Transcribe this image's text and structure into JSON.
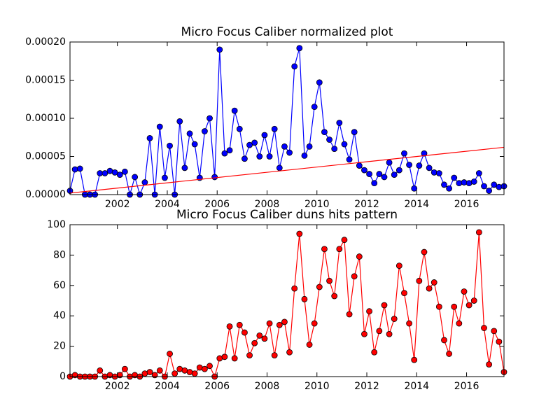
{
  "chart_data": [
    {
      "type": "line",
      "title": "Micro Focus Caliber normalized plot",
      "x": [
        2000.1,
        2000.3,
        2000.5,
        2000.7,
        2000.9,
        2001.1,
        2001.3,
        2001.5,
        2001.7,
        2001.9,
        2002.1,
        2002.3,
        2002.5,
        2002.7,
        2002.9,
        2003.1,
        2003.3,
        2003.5,
        2003.7,
        2003.9,
        2004.1,
        2004.3,
        2004.5,
        2004.7,
        2004.9,
        2005.1,
        2005.3,
        2005.5,
        2005.7,
        2005.9,
        2006.1,
        2006.3,
        2006.5,
        2006.7,
        2006.9,
        2007.1,
        2007.3,
        2007.5,
        2007.7,
        2007.9,
        2008.1,
        2008.3,
        2008.5,
        2008.7,
        2008.9,
        2009.1,
        2009.3,
        2009.5,
        2009.7,
        2009.9,
        2010.1,
        2010.3,
        2010.5,
        2010.7,
        2010.9,
        2011.1,
        2011.3,
        2011.5,
        2011.7,
        2011.9,
        2012.1,
        2012.3,
        2012.5,
        2012.7,
        2012.9,
        2013.1,
        2013.3,
        2013.5,
        2013.7,
        2013.9,
        2014.1,
        2014.3,
        2014.5,
        2014.7,
        2014.9,
        2015.1,
        2015.3,
        2015.5,
        2015.7,
        2015.9,
        2016.1,
        2016.3,
        2016.5,
        2016.7,
        2016.9,
        2017.1,
        2017.3,
        2017.5
      ],
      "series": [
        {
          "color": "#0000ff",
          "values": [
            5e-06,
            3.3e-05,
            3.4e-05,
            0,
            0,
            0,
            2.8e-05,
            2.8e-05,
            3.1e-05,
            2.9e-05,
            2.6e-05,
            3e-05,
            0,
            2.3e-05,
            0,
            1.6e-05,
            7.4e-05,
            0,
            8.9e-05,
            2.2e-05,
            6.4e-05,
            0,
            9.6e-05,
            3.5e-05,
            8e-05,
            6.6e-05,
            2.2e-05,
            8.3e-05,
            0.0001,
            2.3e-05,
            0.00019,
            5.4e-05,
            5.8e-05,
            0.00011,
            8.6e-05,
            4.7e-05,
            6.5e-05,
            6.8e-05,
            5e-05,
            7.8e-05,
            5e-05,
            8.6e-05,
            3.5e-05,
            6.3e-05,
            5.5e-05,
            0.000168,
            0.000192,
            5.1e-05,
            6.3e-05,
            0.000115,
            0.000147,
            8.2e-05,
            7.2e-05,
            6e-05,
            9.4e-05,
            6.6e-05,
            4.6e-05,
            8.2e-05,
            3.8e-05,
            3.2e-05,
            2.7e-05,
            1.5e-05,
            2.7e-05,
            2.3e-05,
            4.2e-05,
            2.6e-05,
            3.2e-05,
            5.4e-05,
            3.9e-05,
            8e-06,
            3.8e-05,
            5.4e-05,
            3.5e-05,
            2.9e-05,
            2.8e-05,
            1.3e-05,
            8e-06,
            2.2e-05,
            1.5e-05,
            1.6e-05,
            1.5e-05,
            1.7e-05,
            2.8e-05,
            1.1e-05,
            5e-06,
            1.3e-05,
            1e-05,
            1.1e-05
          ]
        }
      ],
      "trend": {
        "x": [
          2000.1,
          2017.5
        ],
        "values": [
          2e-06,
          6.2e-05
        ],
        "color": "#ff0000"
      },
      "xlim": [
        2000.1,
        2017.5
      ],
      "xticks": [
        2002,
        2004,
        2006,
        2008,
        2010,
        2012,
        2014,
        2016
      ],
      "ylim": [
        0,
        0.0002
      ],
      "yticks": [
        {
          "value": 0,
          "label": "0.00000"
        },
        {
          "value": 5e-05,
          "label": "0.00005"
        },
        {
          "value": 0.0001,
          "label": "0.00010"
        },
        {
          "value": 0.00015,
          "label": "0.00015"
        },
        {
          "value": 0.0002,
          "label": "0.00020"
        }
      ]
    },
    {
      "type": "line",
      "title": "Micro Focus Caliber duns hits pattern",
      "x": [
        2000.1,
        2000.3,
        2000.5,
        2000.7,
        2000.9,
        2001.1,
        2001.3,
        2001.5,
        2001.7,
        2001.9,
        2002.1,
        2002.3,
        2002.5,
        2002.7,
        2002.9,
        2003.1,
        2003.3,
        2003.5,
        2003.7,
        2003.9,
        2004.1,
        2004.3,
        2004.5,
        2004.7,
        2004.9,
        2005.1,
        2005.3,
        2005.5,
        2005.7,
        2005.9,
        2006.1,
        2006.3,
        2006.5,
        2006.7,
        2006.9,
        2007.1,
        2007.3,
        2007.5,
        2007.7,
        2007.9,
        2008.1,
        2008.3,
        2008.5,
        2008.7,
        2008.9,
        2009.1,
        2009.3,
        2009.5,
        2009.7,
        2009.9,
        2010.1,
        2010.3,
        2010.5,
        2010.7,
        2010.9,
        2011.1,
        2011.3,
        2011.5,
        2011.7,
        2011.9,
        2012.1,
        2012.3,
        2012.5,
        2012.7,
        2012.9,
        2013.1,
        2013.3,
        2013.5,
        2013.7,
        2013.9,
        2014.1,
        2014.3,
        2014.5,
        2014.7,
        2014.9,
        2015.1,
        2015.3,
        2015.5,
        2015.7,
        2015.9,
        2016.1,
        2016.3,
        2016.5,
        2016.7,
        2016.9,
        2017.1,
        2017.3,
        2017.5
      ],
      "series": [
        {
          "color": "#ff0000",
          "values": [
            0,
            1,
            0,
            0,
            0,
            0,
            4,
            0,
            1,
            0,
            1,
            5,
            0,
            1,
            0,
            2,
            3,
            1,
            4,
            0,
            15,
            2,
            5,
            4,
            3,
            2,
            6,
            5,
            7,
            0,
            12,
            13,
            33,
            12,
            34,
            29,
            14,
            22,
            27,
            25,
            35,
            14,
            34,
            36,
            16,
            58,
            94,
            51,
            21,
            35,
            59,
            84,
            63,
            53,
            84,
            90,
            41,
            66,
            79,
            28,
            43,
            16,
            30,
            47,
            28,
            38,
            73,
            55,
            35,
            11,
            63,
            82,
            58,
            62,
            46,
            24,
            15,
            46,
            35,
            56,
            47,
            50,
            95,
            32,
            8,
            30,
            23,
            3
          ]
        }
      ],
      "xlim": [
        2000.1,
        2017.5
      ],
      "xticks": [
        2002,
        2004,
        2006,
        2008,
        2010,
        2012,
        2014,
        2016
      ],
      "ylim": [
        0,
        100
      ],
      "yticks": [
        0,
        20,
        40,
        60,
        80,
        100
      ]
    }
  ]
}
